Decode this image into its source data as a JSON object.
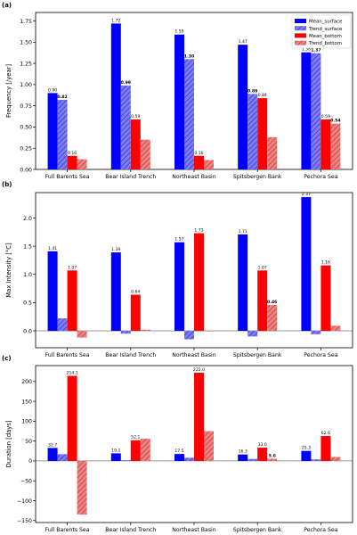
{
  "legend": {
    "entries": [
      {
        "name": "Mean_surface",
        "color": "#0000ff",
        "hatch": false
      },
      {
        "name": "Trend_surface",
        "color": "#7b7bf6",
        "hatch": true
      },
      {
        "name": "Mean_bottom",
        "color": "#ff0000",
        "hatch": false
      },
      {
        "name": "Trend_bottom",
        "color": "#f08080",
        "hatch": true
      }
    ],
    "placement": "top-right of panel (a)"
  },
  "chart_data": [
    {
      "type": "bar",
      "panel_label": "(a)",
      "ylabel": "Frequency [/year]",
      "categories": [
        "Full Barents Sea",
        "Bear Island Trench",
        "Northeast Basin",
        "Spitsbergen Bank",
        "Pechora Sea"
      ],
      "ylim": [
        0,
        1.85
      ],
      "yticks": [
        0.0,
        0.25,
        0.5,
        0.75,
        1.0,
        1.25,
        1.5,
        1.75
      ],
      "ytick_labels": [
        "0.00",
        "0.25",
        "0.50",
        "0.75",
        "1.00",
        "1.25",
        "1.50",
        "1.75"
      ],
      "grid": false,
      "series": [
        {
          "name": "Mean_surface",
          "values": [
            0.9,
            1.72,
            1.59,
            1.47,
            1.38
          ],
          "labels": [
            "0.90",
            "1.72",
            "1.59",
            "1.47",
            "1.38"
          ],
          "bold": false
        },
        {
          "name": "Trend_surface",
          "values": [
            0.82,
            0.99,
            1.3,
            0.89,
            1.37
          ],
          "labels": [
            "0.82",
            "0.99",
            "1.30",
            "0.89",
            "1.37"
          ],
          "bold": true
        },
        {
          "name": "Mean_bottom",
          "values": [
            0.16,
            0.59,
            0.16,
            0.84,
            0.59
          ],
          "labels": [
            "0.16",
            "0.59",
            "0.16",
            "0.84",
            "0.59"
          ],
          "bold": false
        },
        {
          "name": "Trend_bottom",
          "values": [
            0.12,
            0.35,
            0.11,
            0.38,
            0.54
          ],
          "labels": [
            "",
            "",
            "",
            "",
            "0.54"
          ],
          "bold": true
        }
      ]
    },
    {
      "type": "bar",
      "panel_label": "(b)",
      "ylabel": "Max Intensity [°C]",
      "categories": [
        "Full Barents Sea",
        "Bear Island Trench",
        "Northeast Basin",
        "Spitsbergen Bank",
        "Pechora Sea"
      ],
      "ylim": [
        -0.3,
        2.45
      ],
      "yticks": [
        0.0,
        0.5,
        1.0,
        1.5,
        2.0
      ],
      "ytick_labels": [
        "0.0",
        "0.5",
        "1.0",
        "1.5",
        "2.0"
      ],
      "grid": false,
      "series": [
        {
          "name": "Mean_surface",
          "values": [
            1.41,
            1.39,
            1.57,
            1.71,
            2.37
          ],
          "labels": [
            "1.41",
            "1.39",
            "1.57",
            "1.71",
            "2.37"
          ],
          "bold": false
        },
        {
          "name": "Trend_surface",
          "values": [
            0.22,
            -0.05,
            -0.15,
            -0.1,
            -0.06
          ],
          "labels": [
            "",
            "",
            "",
            "",
            ""
          ],
          "bold": true
        },
        {
          "name": "Mean_bottom",
          "values": [
            1.07,
            0.64,
            1.73,
            1.07,
            1.16
          ],
          "labels": [
            "1.07",
            "0.64",
            "1.73",
            "1.07",
            "1.16"
          ],
          "bold": false
        },
        {
          "name": "Trend_bottom",
          "values": [
            -0.12,
            0.02,
            -0.01,
            0.46,
            0.09
          ],
          "labels": [
            "",
            "",
            "",
            "0.46",
            ""
          ],
          "bold": true
        }
      ]
    },
    {
      "type": "bar",
      "panel_label": "(c)",
      "ylabel": "Duration [days]",
      "categories": [
        "Full Barents Sea",
        "Bear Island Trench",
        "Northeast Basin",
        "Spitsbergen Bank",
        "Pechora Sea"
      ],
      "ylim": [
        -155,
        240
      ],
      "yticks": [
        -150,
        -100,
        -50,
        0,
        50,
        100,
        150,
        200
      ],
      "ytick_labels": [
        "−150",
        "−100",
        "−50",
        "0",
        "50",
        "100",
        "150",
        "200"
      ],
      "grid": false,
      "series": [
        {
          "name": "Mean_surface",
          "values": [
            32.7,
            19.1,
            17.5,
            16.3,
            25.3
          ],
          "labels": [
            "32.7",
            "19.1",
            "17.5",
            "16.3",
            "25.3"
          ],
          "bold": false
        },
        {
          "name": "Trend_surface",
          "values": [
            17,
            2,
            8,
            5,
            4
          ],
          "labels": [
            "",
            "",
            "",
            "",
            ""
          ],
          "bold": true
        },
        {
          "name": "Mean_bottom",
          "values": [
            214.1,
            52.1,
            222.0,
            33.6,
            62.6
          ],
          "labels": [
            "214.1",
            "52.1",
            "222.0",
            "33.6",
            "62.6"
          ],
          "bold": false
        },
        {
          "name": "Trend_bottom",
          "values": [
            -135,
            56,
            75,
            5.6,
            10
          ],
          "labels": [
            "",
            "",
            "",
            "5.6",
            ""
          ],
          "bold": true
        }
      ]
    }
  ]
}
